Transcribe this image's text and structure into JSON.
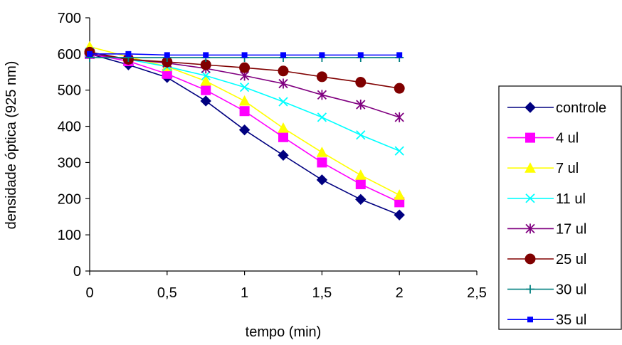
{
  "chart_data": {
    "type": "line",
    "title": "",
    "xlabel": "tempo (min)",
    "ylabel": "densidade óptica (925 nm)",
    "xlim": [
      0,
      2.5
    ],
    "ylim": [
      0,
      700
    ],
    "x_ticks": [
      0,
      0.5,
      1,
      1.5,
      2,
      2.5
    ],
    "x_tick_labels": [
      "0",
      "0,5",
      "1",
      "1,5",
      "2",
      "2,5"
    ],
    "y_ticks": [
      0,
      100,
      200,
      300,
      400,
      500,
      600,
      700
    ],
    "y_tick_labels": [
      "0",
      "100",
      "200",
      "300",
      "400",
      "500",
      "600",
      "700"
    ],
    "grid": false,
    "legend_position": "right",
    "x": [
      0,
      0.25,
      0.5,
      0.75,
      1,
      1.25,
      1.5,
      1.75,
      2
    ],
    "series": [
      {
        "name": "controle",
        "color": "#000080",
        "marker": "diamond",
        "values": [
          600,
          570,
          535,
          470,
          390,
          320,
          252,
          198,
          155
        ]
      },
      {
        "name": "4 ul",
        "color": "#FF00FF",
        "marker": "square",
        "values": [
          600,
          580,
          545,
          500,
          442,
          370,
          300,
          240,
          190
        ]
      },
      {
        "name": "7 ul",
        "color": "#FFFF00",
        "marker": "triangle",
        "values": [
          620,
          592,
          565,
          525,
          470,
          395,
          328,
          265,
          210
        ]
      },
      {
        "name": "11 ul",
        "color": "#00FFFF",
        "marker": "x",
        "values": [
          605,
          585,
          565,
          540,
          508,
          468,
          425,
          376,
          332
        ]
      },
      {
        "name": "17 ul",
        "color": "#800080",
        "marker": "asterisk",
        "values": [
          600,
          585,
          575,
          560,
          540,
          518,
          487,
          460,
          425
        ]
      },
      {
        "name": "25 ul",
        "color": "#800000",
        "marker": "circle",
        "values": [
          605,
          585,
          578,
          570,
          562,
          553,
          537,
          522,
          505
        ]
      },
      {
        "name": "30 ul",
        "color": "#008080",
        "marker": "plus",
        "values": [
          590,
          590,
          590,
          590,
          590,
          590,
          590,
          590,
          590
        ]
      },
      {
        "name": "35 ul",
        "color": "#0000FF",
        "marker": "smallsquare",
        "values": [
          600,
          600,
          597,
          597,
          597,
          597,
          597,
          597,
          597
        ]
      }
    ]
  }
}
